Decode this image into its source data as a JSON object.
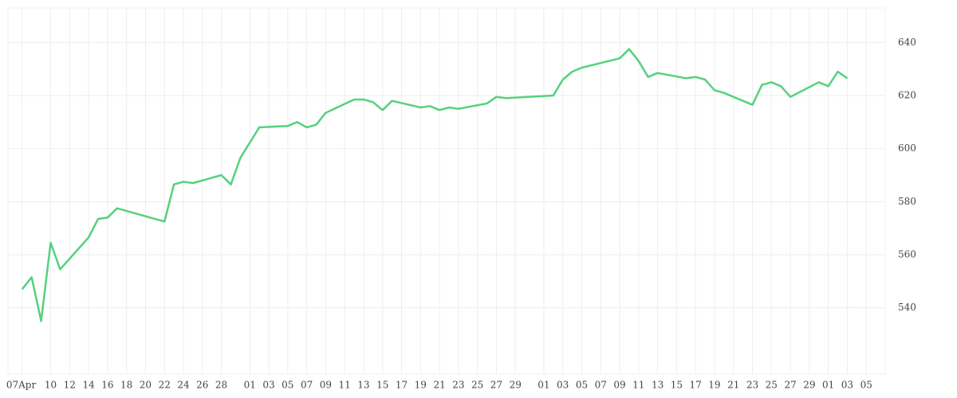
{
  "chart_data": {
    "type": "line",
    "x": [
      0,
      1,
      2,
      3,
      4,
      7,
      8,
      9,
      10,
      15,
      16,
      17,
      18,
      21,
      22,
      23,
      25,
      28,
      29,
      30,
      31,
      32,
      35,
      36,
      37,
      38,
      39,
      42,
      43,
      44,
      45,
      46,
      49,
      50,
      51,
      56,
      57,
      58,
      59,
      63,
      64,
      65,
      66,
      67,
      70,
      71,
      72,
      73,
      74,
      77,
      78,
      79,
      80,
      81,
      84,
      85,
      86,
      87
    ],
    "series": [
      {
        "color": "#55d17f",
        "values": [
          547,
          551.5,
          535,
          564.5,
          554.5,
          566.5,
          573.5,
          574,
          577.5,
          572.5,
          586.5,
          587.5,
          587,
          590,
          586.5,
          596.5,
          608,
          608.5,
          610,
          608,
          609,
          613.5,
          618.5,
          618.5,
          617.5,
          614.5,
          618,
          615.5,
          616,
          614.5,
          615.5,
          615,
          617,
          619.5,
          619,
          620,
          626,
          629,
          630.5,
          634,
          637.5,
          633,
          627,
          628.5,
          626.5,
          627,
          626,
          622,
          621,
          616.5,
          624,
          625,
          623.5,
          619.5,
          625,
          623.5,
          629,
          626.5
        ]
      }
    ],
    "xlim": [
      -1.5,
      91
    ],
    "xticks": [
      {
        "value": 0,
        "label": "07Apr"
      },
      {
        "value": 3,
        "label": "10"
      },
      {
        "value": 5,
        "label": "12"
      },
      {
        "value": 7,
        "label": "14"
      },
      {
        "value": 9,
        "label": "16"
      },
      {
        "value": 11,
        "label": "18"
      },
      {
        "value": 13,
        "label": "20"
      },
      {
        "value": 15,
        "label": "22"
      },
      {
        "value": 17,
        "label": "24"
      },
      {
        "value": 19,
        "label": "26"
      },
      {
        "value": 21,
        "label": "28"
      },
      {
        "value": 24,
        "label": "01"
      },
      {
        "value": 26,
        "label": "03"
      },
      {
        "value": 28,
        "label": "05"
      },
      {
        "value": 30,
        "label": "07"
      },
      {
        "value": 32,
        "label": "09"
      },
      {
        "value": 34,
        "label": "11"
      },
      {
        "value": 36,
        "label": "13"
      },
      {
        "value": 38,
        "label": "15"
      },
      {
        "value": 40,
        "label": "17"
      },
      {
        "value": 42,
        "label": "19"
      },
      {
        "value": 44,
        "label": "21"
      },
      {
        "value": 46,
        "label": "23"
      },
      {
        "value": 48,
        "label": "25"
      },
      {
        "value": 50,
        "label": "27"
      },
      {
        "value": 52,
        "label": "29"
      },
      {
        "value": 55,
        "label": "01"
      },
      {
        "value": 57,
        "label": "03"
      },
      {
        "value": 59,
        "label": "05"
      },
      {
        "value": 61,
        "label": "07"
      },
      {
        "value": 63,
        "label": "09"
      },
      {
        "value": 65,
        "label": "11"
      },
      {
        "value": 67,
        "label": "13"
      },
      {
        "value": 69,
        "label": "15"
      },
      {
        "value": 71,
        "label": "17"
      },
      {
        "value": 73,
        "label": "19"
      },
      {
        "value": 75,
        "label": "21"
      },
      {
        "value": 77,
        "label": "23"
      },
      {
        "value": 79,
        "label": "25"
      },
      {
        "value": 81,
        "label": "27"
      },
      {
        "value": 83,
        "label": "29"
      },
      {
        "value": 85,
        "label": "01"
      },
      {
        "value": 87,
        "label": "03"
      },
      {
        "value": 89,
        "label": "05"
      }
    ],
    "ylim": [
      515,
      653
    ],
    "yticks": [
      540,
      560,
      580,
      600,
      620,
      640
    ],
    "grid": true
  }
}
